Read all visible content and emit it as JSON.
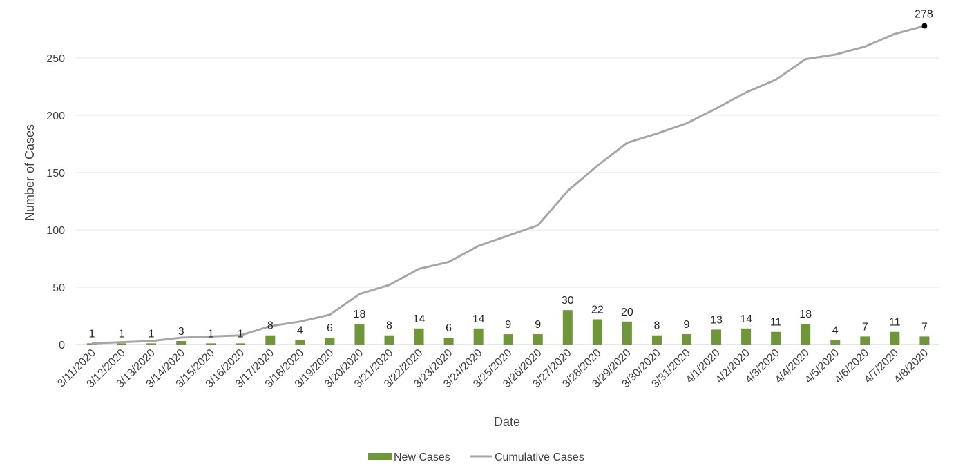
{
  "chart_data": {
    "type": "bar",
    "title": "",
    "xlabel": "Date",
    "ylabel": "Number of Cases",
    "ylim": [
      0,
      280
    ],
    "yticks": [
      0,
      50,
      100,
      150,
      200,
      250
    ],
    "grid": "horizontal",
    "legend_position": "bottom",
    "categories": [
      "3/11/2020",
      "3/12/2020",
      "3/13/2020",
      "3/14/2020",
      "3/15/2020",
      "3/16/2020",
      "3/17/2020",
      "3/18/2020",
      "3/19/2020",
      "3/20/2020",
      "3/21/2020",
      "3/22/2020",
      "3/23/2020",
      "3/24/2020",
      "3/25/2020",
      "3/26/2020",
      "3/27/2020",
      "3/28/2020",
      "3/29/2020",
      "3/30/2020",
      "3/31/2020",
      "4/1/2020",
      "4/2/2020",
      "4/3/2020",
      "4/4/2020",
      "4/5/2020",
      "4/6/2020",
      "4/7/2020",
      "4/8/2020"
    ],
    "series": [
      {
        "name": "New Cases",
        "type": "bar",
        "color": "#70963a",
        "values": [
          1,
          1,
          1,
          3,
          1,
          1,
          8,
          4,
          6,
          18,
          8,
          14,
          6,
          14,
          9,
          9,
          30,
          22,
          20,
          8,
          9,
          13,
          14,
          11,
          18,
          4,
          7,
          11,
          7
        ]
      },
      {
        "name": "Cumulative Cases",
        "type": "line",
        "color": "#a6a6a6",
        "values": [
          1,
          2,
          3,
          6,
          7,
          8,
          16,
          20,
          26,
          44,
          52,
          66,
          72,
          86,
          95,
          104,
          134,
          156,
          176,
          184,
          193,
          206,
          220,
          231,
          249,
          253,
          260,
          271,
          278
        ],
        "end_marker_label": "278",
        "end_marker_color": "#000000"
      }
    ]
  }
}
